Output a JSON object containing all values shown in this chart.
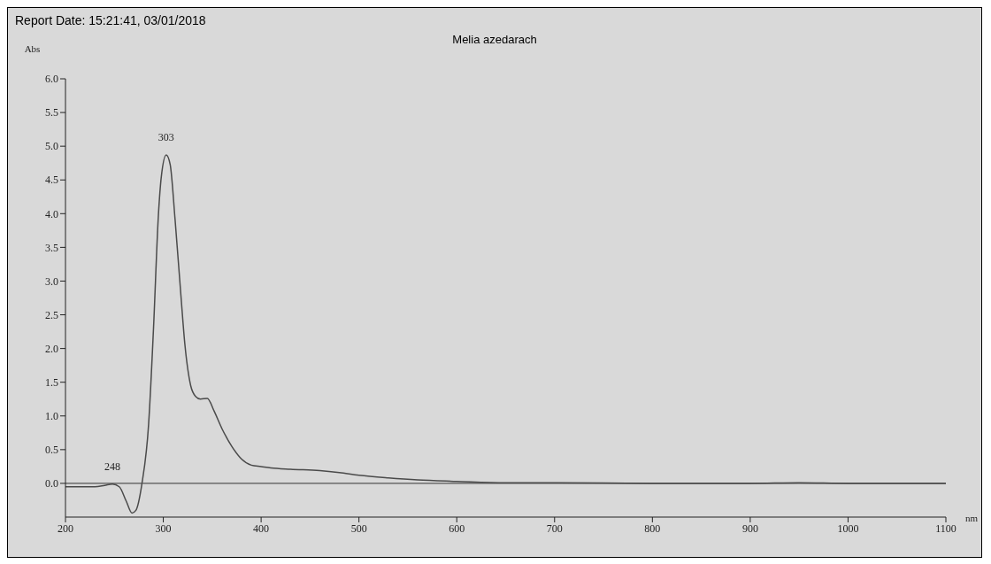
{
  "chart_data": {
    "type": "line",
    "title": "Melia azedarach",
    "xlabel": "nm",
    "ylabel": "Abs",
    "annotations": [
      "Report Date: 15:21:41, 03/01/2018",
      {
        "text": "303",
        "x": 303,
        "y": 4.87
      },
      {
        "text": "248",
        "x": 248,
        "y": -0.01
      }
    ],
    "x": [
      200,
      230,
      240,
      248,
      255,
      262,
      268,
      272,
      278,
      285,
      290,
      295,
      298,
      303,
      307,
      312,
      318,
      322,
      328,
      333,
      338,
      345,
      352,
      360,
      370,
      380,
      390,
      400,
      410,
      430,
      460,
      480,
      500,
      530,
      560,
      600,
      650,
      700,
      800,
      900,
      950,
      1000,
      1100
    ],
    "series": [
      {
        "color": "#4a4a4a",
        "values": [
          -0.05,
          -0.05,
          -0.03,
          -0.01,
          -0.05,
          -0.26,
          -0.44,
          -0.4,
          -0.02,
          0.88,
          2.3,
          3.98,
          4.55,
          4.87,
          4.73,
          3.92,
          2.79,
          2.07,
          1.45,
          1.29,
          1.25,
          1.26,
          1.07,
          0.81,
          0.55,
          0.36,
          0.27,
          0.25,
          0.23,
          0.21,
          0.19,
          0.16,
          0.12,
          0.08,
          0.05,
          0.03,
          0.01,
          0.01,
          0.0,
          0.0,
          0.01,
          0.0,
          0.0
        ]
      }
    ],
    "xlim": [
      200,
      1100
    ],
    "xticks": [
      200,
      300,
      400,
      500,
      600,
      700,
      800,
      900,
      1000,
      1100
    ],
    "ylim": [
      -0.5,
      6
    ],
    "yticks": [
      {
        "value": 0,
        "label": "0.0"
      },
      {
        "value": 0.5,
        "label": "0.5"
      },
      {
        "value": 1,
        "label": "1.0"
      },
      {
        "value": 1.5,
        "label": "1.5"
      },
      {
        "value": 2,
        "label": "2.0"
      },
      {
        "value": 2.5,
        "label": "2.5"
      },
      {
        "value": 3,
        "label": "3.0"
      },
      {
        "value": 3.5,
        "label": "3.5"
      },
      {
        "value": 4,
        "label": "4.0"
      },
      {
        "value": 4.5,
        "label": "4.5"
      },
      {
        "value": 5,
        "label": "5.0"
      },
      {
        "value": 5.5,
        "label": "5.5"
      },
      {
        "value": 6,
        "label": "6.0"
      }
    ],
    "ref_lines": [
      {
        "axis": "y",
        "value": 0,
        "color": "#333333"
      }
    ],
    "grid": false,
    "legend": false,
    "marker": "none",
    "line_style": "solid"
  }
}
